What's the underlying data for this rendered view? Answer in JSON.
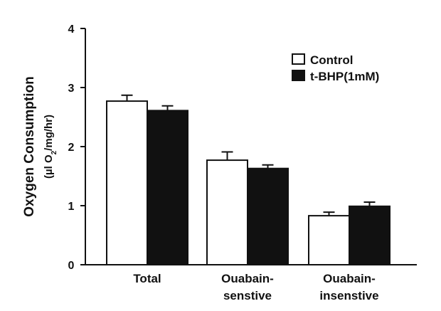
{
  "chart_data": {
    "type": "bar",
    "title": "",
    "xlabel": "",
    "ylabel": [
      "Oxygen Consumption",
      "(µl O",
      "2",
      "/mg/hr)"
    ],
    "ylim": [
      0,
      4
    ],
    "yticks": [
      "0",
      "1",
      "2",
      "3",
      "4"
    ],
    "categories": [
      [
        "Total"
      ],
      [
        "Ouabain-",
        "senstive"
      ],
      [
        "Ouabain-",
        "insenstive"
      ]
    ],
    "series": [
      {
        "name": "Control",
        "color": "#ffffff",
        "values": [
          2.77,
          1.77,
          0.83
        ],
        "errors": [
          0.1,
          0.14,
          0.06
        ]
      },
      {
        "name": "t-BHP(1mM)",
        "color": "#111111",
        "values": [
          2.61,
          1.63,
          0.99
        ],
        "errors": [
          0.08,
          0.06,
          0.07
        ]
      }
    ],
    "legend": "top-right",
    "grid": false
  }
}
